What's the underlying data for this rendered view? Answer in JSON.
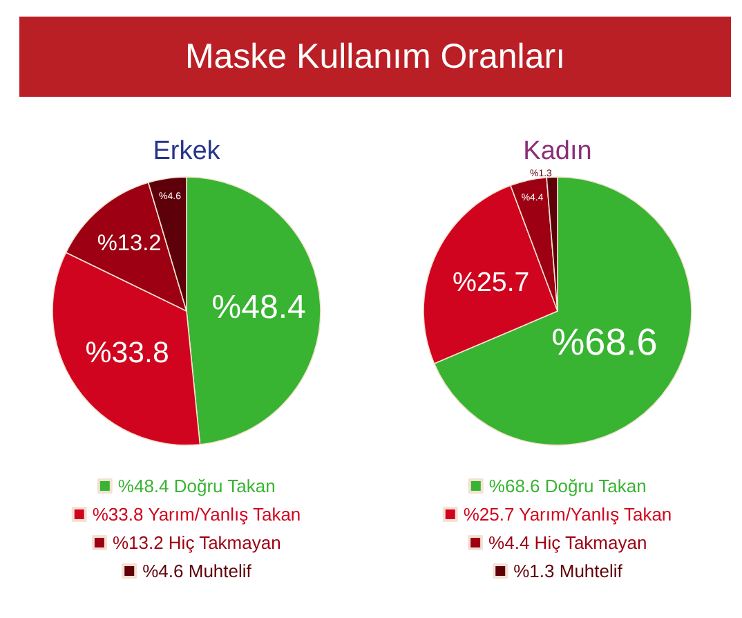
{
  "chart_data": [
    {
      "type": "pie",
      "title": "Maske Kullanım Oranları",
      "subtitle": "Erkek",
      "categories": [
        "Doğru Takan",
        "Yarım/Yanlış Takan",
        "Hiç Takmayan",
        "Muhtelif"
      ],
      "values": [
        48.4,
        33.8,
        13.2,
        4.6
      ],
      "colors": [
        "#38b432",
        "#d0041e",
        "#9c0012",
        "#5e0009"
      ],
      "value_labels": [
        "%48.4",
        "%33.8",
        "%13.2",
        "%4.6"
      ],
      "legend": "bottom"
    },
    {
      "type": "pie",
      "subtitle": "Kadın",
      "categories": [
        "Doğru Takan",
        "Yarım/Yanlış Takan",
        "Hiç Takmayan",
        "Muhtelif"
      ],
      "values": [
        68.6,
        25.7,
        4.4,
        1.3
      ],
      "colors": [
        "#38b432",
        "#d0041e",
        "#9c0012",
        "#5e0009"
      ],
      "value_labels": [
        "%68.6",
        "%25.7",
        "%4.4",
        "%1.3"
      ],
      "legend": "bottom"
    }
  ]
}
